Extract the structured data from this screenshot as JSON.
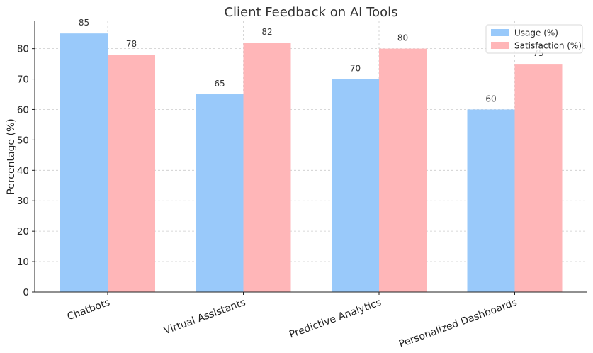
{
  "chart_data": {
    "type": "bar",
    "title": "Client Feedback on AI Tools",
    "xlabel": "",
    "ylabel": "Percentage (%)",
    "categories": [
      "Chatbots",
      "Virtual Assistants",
      "Predictive Analytics",
      "Personalized Dashboards"
    ],
    "series": [
      {
        "name": "Usage (%)",
        "values": [
          85,
          65,
          70,
          60
        ],
        "color": "#99c9fa"
      },
      {
        "name": "Satisfaction (%)",
        "values": [
          78,
          82,
          80,
          75
        ],
        "color": "#ffb6b8"
      }
    ],
    "ylim": [
      0,
      89
    ],
    "yticks": [
      0,
      10,
      20,
      30,
      40,
      50,
      60,
      70,
      80
    ],
    "grid": true,
    "legend_position": "top-right"
  }
}
